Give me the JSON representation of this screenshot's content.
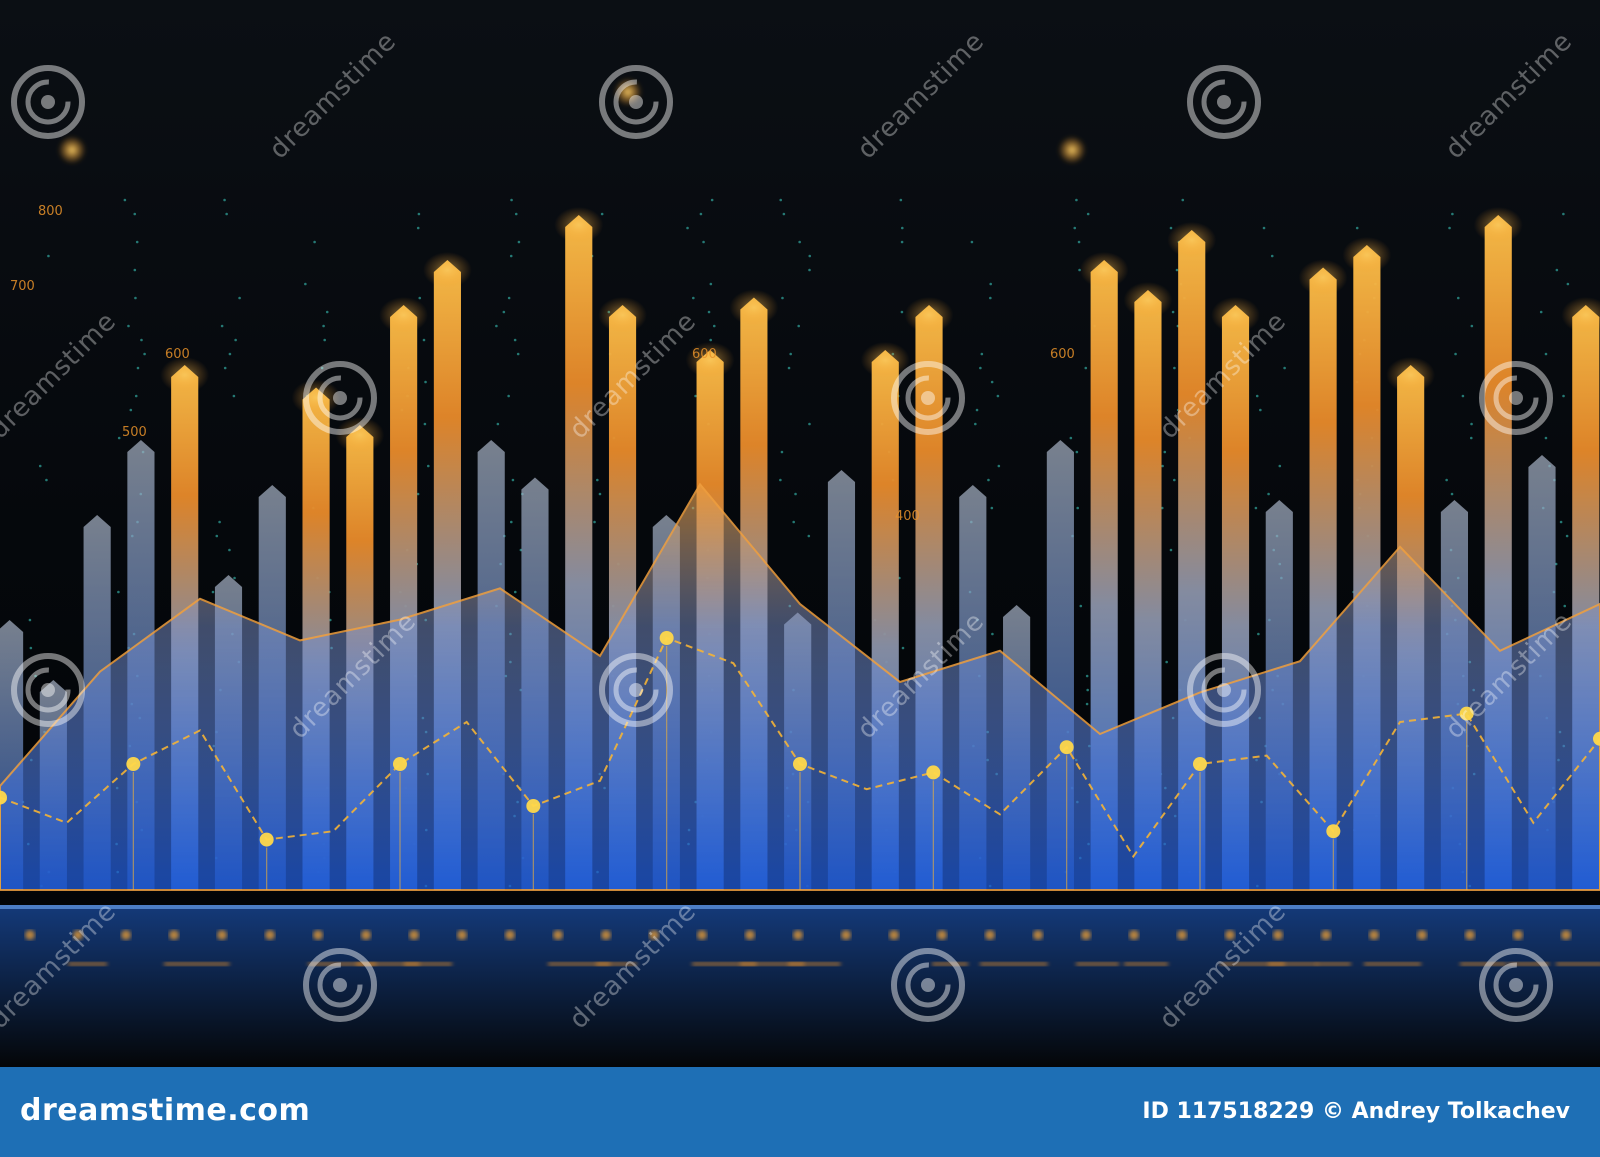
{
  "scene": {
    "colors": {
      "background": "#05080c",
      "bar_top": "#ffb23a",
      "bar_mid": "#e07a1f",
      "bar_bottom": "#2f6fd0",
      "area_fill": "#3e7fd8",
      "area_peak": "#f0a040",
      "line": "#f5b435",
      "dot": "#ffd84a",
      "dots_grid": "#3ed6c8"
    },
    "axis_labels": [
      "800",
      "700",
      "600",
      "500",
      "600",
      "400",
      "600"
    ],
    "bars": [
      0.36,
      0.28,
      0.5,
      0.6,
      0.7,
      0.42,
      0.54,
      0.67,
      0.62,
      0.78,
      0.84,
      0.6,
      0.55,
      0.9,
      0.78,
      0.5,
      0.72,
      0.79,
      0.37,
      0.56,
      0.72,
      0.78,
      0.54,
      0.38,
      0.6,
      0.84,
      0.8,
      0.88,
      0.78,
      0.52,
      0.83,
      0.86,
      0.7,
      0.52,
      0.9,
      0.58,
      0.78
    ],
    "area_profile": [
      0.2,
      0.42,
      0.56,
      0.48,
      0.52,
      0.58,
      0.45,
      0.78,
      0.55,
      0.4,
      0.46,
      0.3,
      0.38,
      0.44,
      0.66,
      0.46,
      0.55
    ],
    "line_profile": [
      0.22,
      0.16,
      0.3,
      0.38,
      0.12,
      0.14,
      0.3,
      0.4,
      0.2,
      0.26,
      0.6,
      0.54,
      0.3,
      0.24,
      0.28,
      0.18,
      0.34,
      0.08,
      0.3,
      0.32,
      0.14,
      0.4,
      0.42,
      0.16,
      0.36
    ]
  },
  "watermark": {
    "text": "dreamstime",
    "icon": "dreamstime-spiral-icon"
  },
  "footer": {
    "logo": "dreamstime.com",
    "credit": "ID 117518229 © Andrey Tolkachev"
  }
}
